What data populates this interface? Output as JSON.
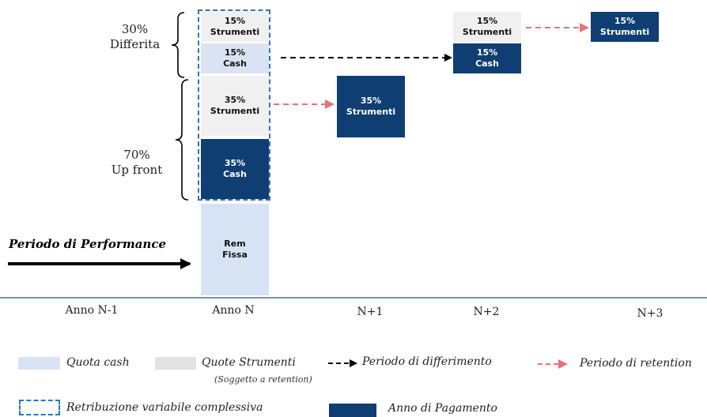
{
  "groups": {
    "deferred_pct": "30%",
    "deferred_label": "Differita",
    "upfront_pct": "70%",
    "upfront_label": "Up front"
  },
  "boxes": {
    "n_strumenti_15": [
      "15%",
      "Strumenti"
    ],
    "n_cash_15": [
      "15%",
      "Cash"
    ],
    "n_strumenti_35": [
      "35%",
      "Strumenti"
    ],
    "n_cash_35": [
      "35%",
      "Cash"
    ],
    "rem_fissa": [
      "Rem",
      "Fissa"
    ],
    "n1_strumenti_35": [
      "35%",
      "Strumenti"
    ],
    "n2_strumenti_15": [
      "15%",
      "Strumenti"
    ],
    "n2_cash_15": [
      "15%",
      "Cash"
    ],
    "n3_strumenti_15": [
      "15%",
      "Strumenti"
    ]
  },
  "performance_label": "Periodo di Performance",
  "axis": {
    "labels": [
      "Anno N-1",
      "Anno N",
      "N+1",
      "N+2",
      "N+3"
    ]
  },
  "legend": {
    "quota_cash": "Quota cash",
    "quote_strumenti": "Quote Strumenti",
    "quote_strumenti_sub": "(Soggetto a retention)",
    "periodo_differimento": "Periodo di differimento",
    "periodo_retention": "Periodo di retention",
    "retribuzione": "Retribuzione variabile complessiva",
    "anno_pagamento": "Anno di Pagamento"
  },
  "colors": {
    "navy": "#0f3e73",
    "cash_light": "#d9e3f3",
    "strumenti_light": "#f0f0f0",
    "dashed_border": "#2e75b6",
    "retention_arrow": "#e8727a",
    "deferral_arrow": "#000000",
    "axis_line": "#4a6f94"
  }
}
